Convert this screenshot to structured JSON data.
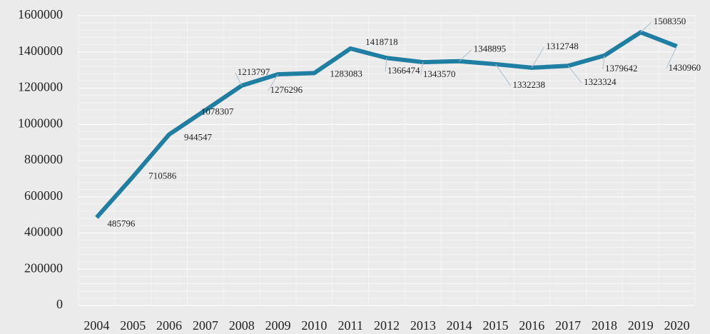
{
  "chart_data": {
    "type": "line",
    "categories": [
      "2004",
      "2005",
      "2006",
      "2007",
      "2008",
      "2009",
      "2010",
      "2011",
      "2012",
      "2013",
      "2014",
      "2015",
      "2016",
      "2017",
      "2018",
      "2019",
      "2020"
    ],
    "values": [
      485796,
      710586,
      944547,
      1078307,
      1213797,
      1276296,
      1283083,
      1418718,
      1366474,
      1343570,
      1348895,
      1332238,
      1312748,
      1323324,
      1379642,
      1508350,
      1430960
    ],
    "color": "#1f7ea1",
    "ylim": [
      0,
      1600000
    ],
    "yticks": [
      0,
      200000,
      400000,
      600000,
      800000,
      1000000,
      1200000,
      1400000,
      1600000
    ],
    "grid": true
  }
}
